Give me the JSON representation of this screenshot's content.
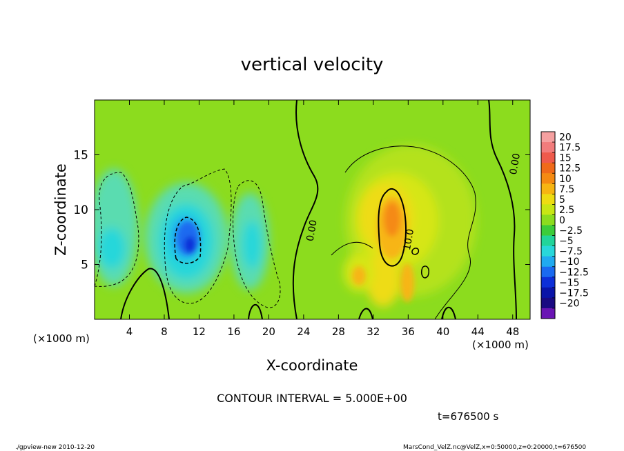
{
  "chart_data": {
    "type": "heatmap",
    "title": "vertical velocity",
    "xlabel": "X-coordinate",
    "ylabel": "Z-coordinate",
    "x_unit_label": "(×1000 m)",
    "y_unit_label": "(×1000 m)",
    "x_ticks": [
      "4",
      "8",
      "12",
      "16",
      "20",
      "24",
      "28",
      "32",
      "36",
      "40",
      "44",
      "48"
    ],
    "x_tick_values": [
      4,
      8,
      12,
      16,
      20,
      24,
      28,
      32,
      36,
      40,
      44,
      48
    ],
    "y_ticks": [
      "5",
      "10",
      "15"
    ],
    "y_tick_values": [
      5,
      10,
      15
    ],
    "xlim": [
      0,
      50
    ],
    "ylim": [
      0,
      20
    ],
    "colorbar_labels": [
      "20",
      "17.5",
      "15",
      "12.5",
      "10",
      "7.5",
      "5",
      "2.5",
      "0",
      "−2.5",
      "−5",
      "−7.5",
      "−10",
      "−12.5",
      "−15",
      "−17.5",
      "−20"
    ],
    "colorbar_colors": [
      "#f5a0a0",
      "#f27c7c",
      "#ef5a4c",
      "#f06a1a",
      "#f58a12",
      "#f7b512",
      "#eedc12",
      "#c8e614",
      "#8cdc1e",
      "#3ccc3a",
      "#22d49a",
      "#28d7da",
      "#20aaf0",
      "#1a6af0",
      "#0d2fd8",
      "#0a14a8",
      "#1a0a82",
      "#6a14b4"
    ],
    "contour_labels": [
      "0.00",
      "0.00",
      "10.0"
    ],
    "contour_interval": "CONTOUR INTERVAL = 5.000E+00",
    "time_label": "t=676500 s",
    "footer_left": "./gpview-new   2010-12-20",
    "footer_right": "MarsCond_VelZ.nc@VelZ,x=0:50000,z=0:20000,t=676500"
  }
}
